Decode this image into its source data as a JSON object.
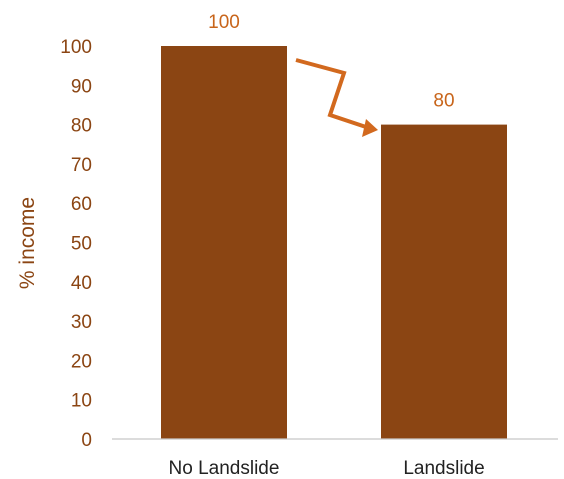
{
  "chart_data": {
    "type": "bar",
    "categories": [
      "No Landslide",
      "Landslide"
    ],
    "values": [
      100,
      80
    ],
    "data_labels": [
      "100",
      "80"
    ],
    "ylabel": "% income",
    "xlabel": "",
    "ylim": [
      0,
      100
    ],
    "yticks": [
      "0",
      "10",
      "20",
      "30",
      "40",
      "50",
      "60",
      "70",
      "80",
      "90",
      "100"
    ],
    "grid": false,
    "legend": "none",
    "annotation": "arrow-from-first-bar-to-second-bar",
    "colors": {
      "bar": "#8B4513",
      "arrow": "#D2691E",
      "label_text": "#8B4513",
      "data_label_text": "#C8651B",
      "category_text": "#222222",
      "axis_line": "#c8c8c8"
    }
  }
}
